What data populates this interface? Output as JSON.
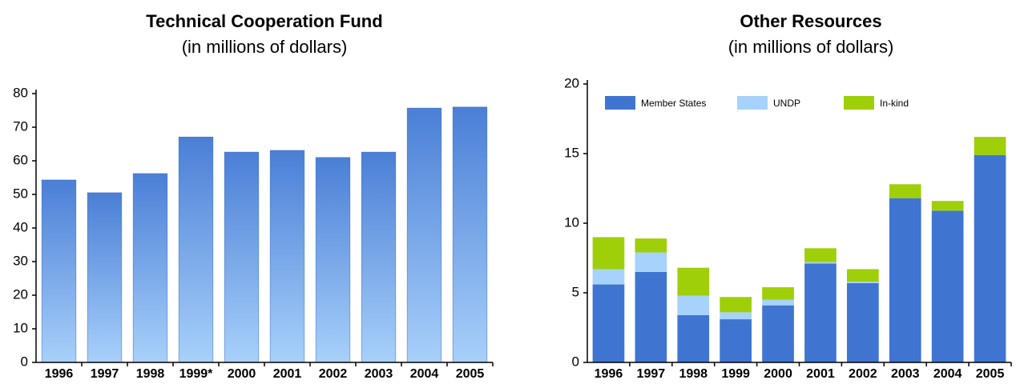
{
  "chart_data": [
    {
      "type": "bar",
      "title": "Technical Cooperation Fund",
      "subtitle": "(in millions of dollars)",
      "categories": [
        "1996",
        "1997",
        "1998",
        "1999*",
        "2000",
        "2001",
        "2002",
        "2003",
        "2004",
        "2005"
      ],
      "values": [
        54.3,
        50.5,
        56.2,
        67.1,
        62.6,
        63.1,
        61,
        62.6,
        75.7,
        76
      ],
      "color": "#4a7fd6",
      "ylim": [
        0,
        80
      ],
      "yticks": [
        0,
        10,
        20,
        30,
        40,
        50,
        60,
        70,
        80
      ],
      "grid": false
    },
    {
      "type": "stacked_bar",
      "title": "Other Resources",
      "subtitle": "(in millions of dollars)",
      "categories": [
        "1996",
        "1997",
        "1998",
        "1999",
        "2000",
        "2001",
        "2002",
        "2003",
        "2004",
        "2005"
      ],
      "series": [
        {
          "name": "Member States",
          "color": "#3f75d1",
          "values": [
            5.6,
            6.5,
            3.4,
            3.1,
            4.1,
            7.1,
            5.7,
            11.8,
            10.9,
            14.9
          ]
        },
        {
          "name": "UNDP",
          "color": "#a6d2fb",
          "values": [
            1.1,
            1.4,
            1.4,
            0.5,
            0.4,
            0.1,
            0.1,
            0,
            0,
            0
          ]
        },
        {
          "name": "In-kind",
          "color": "#9fcf08",
          "values": [
            2.3,
            1.0,
            2.0,
            1.1,
            0.9,
            1.0,
            0.9,
            1.0,
            0.7,
            1.3
          ]
        }
      ],
      "ylim": [
        0,
        20
      ],
      "yticks": [
        0,
        5,
        10,
        15,
        20
      ],
      "grid": false,
      "legend": "top-left"
    }
  ]
}
